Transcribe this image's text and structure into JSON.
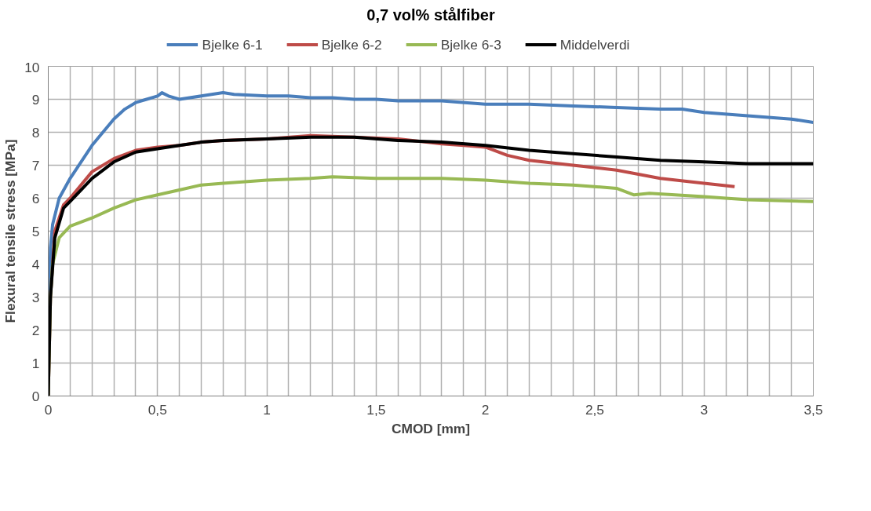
{
  "chart_data": {
    "type": "line",
    "title": "0,7 vol% stålfiber",
    "xlabel": "CMOD [mm]",
    "ylabel": "Flexural tensile stress [MPa]",
    "xlim": [
      0,
      3.5
    ],
    "ylim": [
      0,
      10
    ],
    "xticks": [
      {
        "value": 0,
        "label": "0"
      },
      {
        "value": 0.1,
        "label": null
      },
      {
        "value": 0.2,
        "label": null
      },
      {
        "value": 0.3,
        "label": null
      },
      {
        "value": 0.4,
        "label": null
      },
      {
        "value": 0.5,
        "label": "0,5"
      },
      {
        "value": 0.6,
        "label": null
      },
      {
        "value": 0.7,
        "label": null
      },
      {
        "value": 0.8,
        "label": null
      },
      {
        "value": 0.9,
        "label": null
      },
      {
        "value": 1,
        "label": "1"
      },
      {
        "value": 1.1,
        "label": null
      },
      {
        "value": 1.2,
        "label": null
      },
      {
        "value": 1.3,
        "label": null
      },
      {
        "value": 1.4,
        "label": null
      },
      {
        "value": 1.5,
        "label": "1,5"
      },
      {
        "value": 1.6,
        "label": null
      },
      {
        "value": 1.7,
        "label": null
      },
      {
        "value": 1.8,
        "label": null
      },
      {
        "value": 1.9,
        "label": null
      },
      {
        "value": 2,
        "label": "2"
      },
      {
        "value": 2.1,
        "label": null
      },
      {
        "value": 2.2,
        "label": null
      },
      {
        "value": 2.3,
        "label": null
      },
      {
        "value": 2.4,
        "label": null
      },
      {
        "value": 2.5,
        "label": "2,5"
      },
      {
        "value": 2.6,
        "label": null
      },
      {
        "value": 2.7,
        "label": null
      },
      {
        "value": 2.8,
        "label": null
      },
      {
        "value": 2.9,
        "label": null
      },
      {
        "value": 3,
        "label": "3"
      },
      {
        "value": 3.1,
        "label": null
      },
      {
        "value": 3.2,
        "label": null
      },
      {
        "value": 3.3,
        "label": null
      },
      {
        "value": 3.4,
        "label": null
      },
      {
        "value": 3.5,
        "label": "3,5"
      }
    ],
    "yticks": [
      0,
      1,
      2,
      3,
      4,
      5,
      6,
      7,
      8,
      9,
      10
    ],
    "grid": true,
    "legend": "top",
    "marker": "none",
    "line_style": "solid",
    "series": [
      {
        "name": "Bjelke 6-1",
        "color": "#4a7ebb",
        "x": [
          0,
          0.005,
          0.01,
          0.02,
          0.05,
          0.1,
          0.15,
          0.2,
          0.25,
          0.3,
          0.35,
          0.4,
          0.45,
          0.5,
          0.52,
          0.55,
          0.6,
          0.7,
          0.8,
          0.85,
          1.0,
          1.1,
          1.2,
          1.3,
          1.4,
          1.5,
          1.6,
          1.8,
          2.0,
          2.2,
          2.4,
          2.6,
          2.8,
          2.9,
          3.0,
          3.2,
          3.4,
          3.5
        ],
        "values": [
          0,
          3,
          4.5,
          5.2,
          6.0,
          6.6,
          7.1,
          7.6,
          8.0,
          8.4,
          8.7,
          8.9,
          9.0,
          9.1,
          9.2,
          9.1,
          9.0,
          9.1,
          9.2,
          9.15,
          9.1,
          9.1,
          9.05,
          9.05,
          9.0,
          9.0,
          8.95,
          8.95,
          8.85,
          8.85,
          8.8,
          8.75,
          8.7,
          8.7,
          8.6,
          8.5,
          8.4,
          8.3
        ]
      },
      {
        "name": "Bjelke 6-2",
        "color": "#be4b48",
        "x": [
          0,
          0.01,
          0.03,
          0.07,
          0.1,
          0.2,
          0.3,
          0.4,
          0.5,
          0.6,
          0.7,
          0.8,
          1.0,
          1.2,
          1.4,
          1.6,
          1.8,
          1.9,
          2.0,
          2.1,
          2.2,
          2.4,
          2.6,
          2.8,
          3.0,
          3.14
        ],
        "values": [
          0,
          3,
          5,
          5.8,
          6.0,
          6.8,
          7.2,
          7.45,
          7.55,
          7.6,
          7.7,
          7.75,
          7.8,
          7.9,
          7.85,
          7.8,
          7.65,
          7.6,
          7.55,
          7.3,
          7.15,
          7.0,
          6.85,
          6.6,
          6.45,
          6.35
        ]
      },
      {
        "name": "Bjelke 6-3",
        "color": "#98b954",
        "x": [
          0,
          0.01,
          0.02,
          0.05,
          0.1,
          0.2,
          0.3,
          0.4,
          0.5,
          0.6,
          0.7,
          0.8,
          1.0,
          1.2,
          1.3,
          1.5,
          1.8,
          2.0,
          2.2,
          2.4,
          2.6,
          2.68,
          2.75,
          3.0,
          3.2,
          3.5
        ],
        "values": [
          0,
          3,
          4,
          4.8,
          5.15,
          5.4,
          5.7,
          5.95,
          6.1,
          6.25,
          6.4,
          6.45,
          6.55,
          6.6,
          6.65,
          6.6,
          6.6,
          6.55,
          6.45,
          6.4,
          6.3,
          6.1,
          6.15,
          6.05,
          5.95,
          5.9
        ]
      },
      {
        "name": "Middelverdi",
        "color": "#000000",
        "x": [
          0,
          0.01,
          0.03,
          0.07,
          0.1,
          0.2,
          0.3,
          0.4,
          0.5,
          0.6,
          0.7,
          0.8,
          1.0,
          1.2,
          1.4,
          1.6,
          1.8,
          2.0,
          2.2,
          2.4,
          2.6,
          2.8,
          3.0,
          3.2,
          3.5
        ],
        "values": [
          0,
          3,
          4.8,
          5.7,
          5.9,
          6.6,
          7.1,
          7.4,
          7.5,
          7.6,
          7.7,
          7.75,
          7.8,
          7.85,
          7.85,
          7.75,
          7.7,
          7.6,
          7.45,
          7.35,
          7.25,
          7.15,
          7.1,
          7.05,
          7.05
        ]
      }
    ]
  }
}
